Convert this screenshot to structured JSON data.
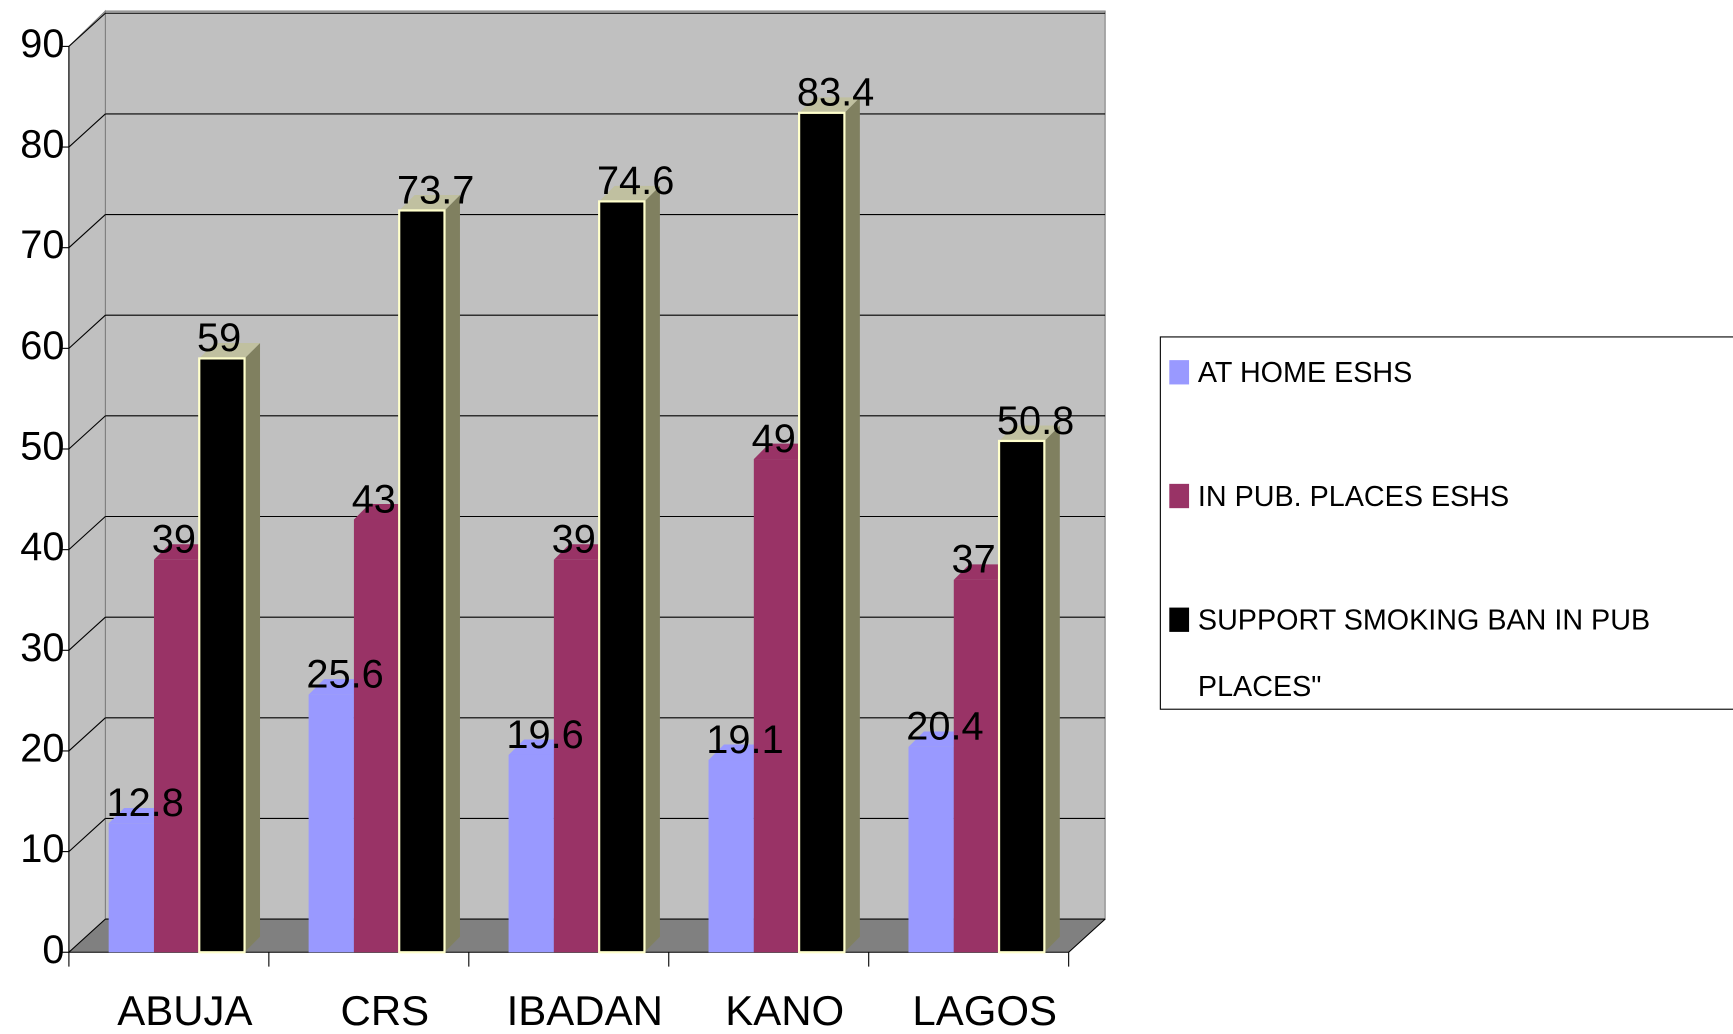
{
  "chart_data": {
    "type": "bar3d",
    "categories": [
      "ABUJA",
      "CRS",
      "IBADAN",
      "KANO",
      "LAGOS"
    ],
    "series": [
      {
        "name": "AT HOME ESHS",
        "color": "#9999ff",
        "values": [
          12.8,
          25.6,
          19.6,
          19.1,
          20.4
        ]
      },
      {
        "name": "IN PUB. PLACES ESHS",
        "color": "#993366",
        "values": [
          39,
          43,
          39,
          49,
          37
        ]
      },
      {
        "name": "SUPPORT SMOKING BAN IN PUB PLACES\"",
        "color": "#000000",
        "values": [
          59,
          73.7,
          74.6,
          83.4,
          50.8
        ]
      }
    ],
    "ylim": [
      0,
      90
    ],
    "yticks": [
      0,
      10,
      20,
      30,
      40,
      50,
      60,
      70,
      80,
      90
    ],
    "grid": true,
    "legend": "right"
  }
}
